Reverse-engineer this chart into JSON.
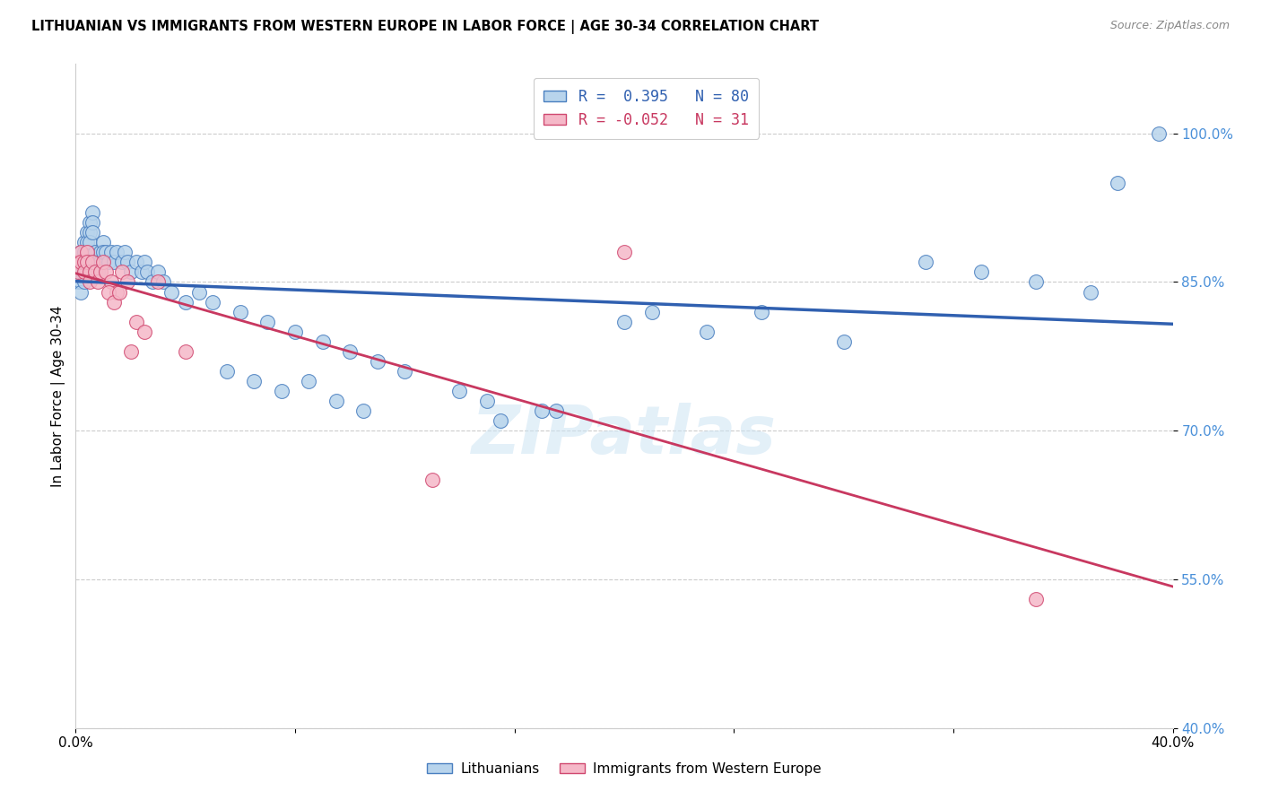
{
  "title": "LITHUANIAN VS IMMIGRANTS FROM WESTERN EUROPE IN LABOR FORCE | AGE 30-34 CORRELATION CHART",
  "source": "Source: ZipAtlas.com",
  "ylabel": "In Labor Force | Age 30-34",
  "xlim": [
    0.0,
    0.4
  ],
  "ylim": [
    0.4,
    1.07
  ],
  "yticks": [
    0.4,
    0.55,
    0.7,
    0.85,
    1.0
  ],
  "ytick_labels": [
    "40.0%",
    "55.0%",
    "70.0%",
    "85.0%",
    "100.0%"
  ],
  "xticks": [
    0.0,
    0.08,
    0.16,
    0.24,
    0.32,
    0.4
  ],
  "xtick_labels": [
    "0.0%",
    "",
    "",
    "",
    "",
    "40.0%"
  ],
  "blue_R": 0.395,
  "blue_N": 80,
  "pink_R": -0.052,
  "pink_N": 31,
  "blue_fill": "#b8d4ec",
  "blue_edge": "#4a7fc0",
  "pink_fill": "#f5b8c8",
  "pink_edge": "#d04870",
  "blue_line": "#3060b0",
  "pink_line": "#c83860",
  "legend_blue": "Lithuanians",
  "legend_pink": "Immigrants from Western Europe",
  "watermark": "ZIPatlas",
  "blue_x": [
    0.001,
    0.001,
    0.001,
    0.002,
    0.002,
    0.002,
    0.002,
    0.002,
    0.003,
    0.003,
    0.003,
    0.003,
    0.003,
    0.004,
    0.004,
    0.004,
    0.004,
    0.005,
    0.005,
    0.005,
    0.006,
    0.006,
    0.006,
    0.007,
    0.007,
    0.008,
    0.008,
    0.009,
    0.009,
    0.01,
    0.01,
    0.011,
    0.012,
    0.013,
    0.014,
    0.015,
    0.017,
    0.018,
    0.019,
    0.02,
    0.022,
    0.024,
    0.025,
    0.026,
    0.028,
    0.03,
    0.032,
    0.035,
    0.04,
    0.045,
    0.05,
    0.06,
    0.07,
    0.08,
    0.09,
    0.1,
    0.11,
    0.12,
    0.14,
    0.15,
    0.17,
    0.2,
    0.21,
    0.23,
    0.25,
    0.28,
    0.31,
    0.33,
    0.35,
    0.37,
    0.38,
    0.395,
    0.175,
    0.155,
    0.055,
    0.065,
    0.075,
    0.085,
    0.095,
    0.105
  ],
  "blue_y": [
    0.87,
    0.86,
    0.85,
    0.88,
    0.87,
    0.86,
    0.85,
    0.84,
    0.89,
    0.88,
    0.87,
    0.86,
    0.85,
    0.9,
    0.89,
    0.88,
    0.87,
    0.91,
    0.9,
    0.89,
    0.92,
    0.91,
    0.9,
    0.88,
    0.87,
    0.87,
    0.86,
    0.88,
    0.87,
    0.89,
    0.88,
    0.88,
    0.87,
    0.88,
    0.87,
    0.88,
    0.87,
    0.88,
    0.87,
    0.86,
    0.87,
    0.86,
    0.87,
    0.86,
    0.85,
    0.86,
    0.85,
    0.84,
    0.83,
    0.84,
    0.83,
    0.82,
    0.81,
    0.8,
    0.79,
    0.78,
    0.77,
    0.76,
    0.74,
    0.73,
    0.72,
    0.81,
    0.82,
    0.8,
    0.82,
    0.79,
    0.87,
    0.86,
    0.85,
    0.84,
    0.95,
    1.0,
    0.72,
    0.71,
    0.76,
    0.75,
    0.74,
    0.75,
    0.73,
    0.72
  ],
  "pink_x": [
    0.001,
    0.001,
    0.002,
    0.002,
    0.003,
    0.003,
    0.004,
    0.004,
    0.005,
    0.005,
    0.006,
    0.007,
    0.008,
    0.009,
    0.01,
    0.011,
    0.013,
    0.015,
    0.017,
    0.019,
    0.022,
    0.025,
    0.03,
    0.04,
    0.13,
    0.2,
    0.35,
    0.012,
    0.014,
    0.016,
    0.02
  ],
  "pink_y": [
    0.87,
    0.86,
    0.88,
    0.87,
    0.87,
    0.86,
    0.88,
    0.87,
    0.86,
    0.85,
    0.87,
    0.86,
    0.85,
    0.86,
    0.87,
    0.86,
    0.85,
    0.84,
    0.86,
    0.85,
    0.81,
    0.8,
    0.85,
    0.78,
    0.65,
    0.88,
    0.53,
    0.84,
    0.83,
    0.84,
    0.78
  ]
}
